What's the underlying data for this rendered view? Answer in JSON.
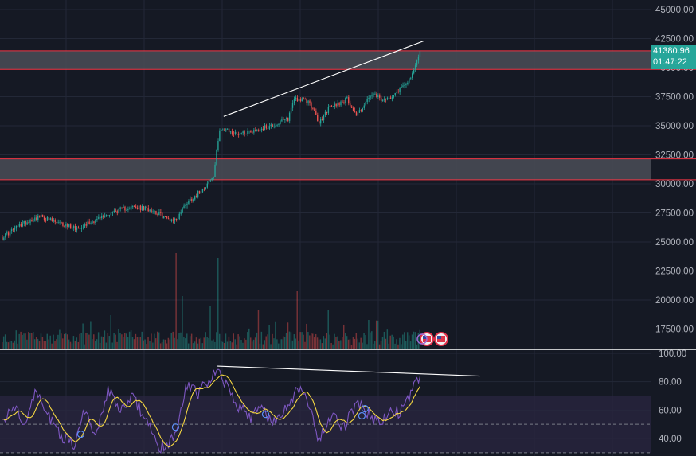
{
  "colors": {
    "background": "#151924",
    "grid": "#232837",
    "axis_text": "#b2b5be",
    "up": "#26a69a",
    "down": "#ef5350",
    "zone_fill": "#4a4d57",
    "zone_border": "#f23645",
    "trendline": "#ffffff",
    "rsi_line": "#7e57c2",
    "rsi_ma": "#f5d742",
    "rsi_band": "#2a2540"
  },
  "price_tag": {
    "price": "41380.96",
    "countdown": "01:47:22"
  },
  "chart_data": [
    {
      "type": "candlestick",
      "title": "",
      "y_ticks": [
        "45000.00",
        "42500.00",
        "40000.00",
        "37500.00",
        "35000.00",
        "32500.00",
        "30000.00",
        "27500.00",
        "25000.00",
        "22500.00",
        "20000.00",
        "17500.00"
      ],
      "ylim": [
        15300,
        45500
      ],
      "last_price": 41380.96,
      "grid": true,
      "price_path": [
        {
          "i": 0,
          "p": 25400
        },
        {
          "i": 12,
          "p": 26500
        },
        {
          "i": 24,
          "p": 27200
        },
        {
          "i": 36,
          "p": 26600
        },
        {
          "i": 48,
          "p": 26200
        },
        {
          "i": 60,
          "p": 26900
        },
        {
          "i": 72,
          "p": 27600
        },
        {
          "i": 82,
          "p": 28000
        },
        {
          "i": 96,
          "p": 27800
        },
        {
          "i": 106,
          "p": 27000
        },
        {
          "i": 112,
          "p": 26900
        },
        {
          "i": 118,
          "p": 28300
        },
        {
          "i": 126,
          "p": 29200
        },
        {
          "i": 132,
          "p": 30000
        },
        {
          "i": 136,
          "p": 30600
        },
        {
          "i": 140,
          "p": 34800
        },
        {
          "i": 150,
          "p": 34300
        },
        {
          "i": 162,
          "p": 34600
        },
        {
          "i": 176,
          "p": 35100
        },
        {
          "i": 184,
          "p": 35600
        },
        {
          "i": 188,
          "p": 37400
        },
        {
          "i": 198,
          "p": 37000
        },
        {
          "i": 204,
          "p": 35200
        },
        {
          "i": 210,
          "p": 36500
        },
        {
          "i": 222,
          "p": 37300
        },
        {
          "i": 228,
          "p": 35900
        },
        {
          "i": 238,
          "p": 37700
        },
        {
          "i": 246,
          "p": 37100
        },
        {
          "i": 256,
          "p": 38200
        },
        {
          "i": 264,
          "p": 39300
        },
        {
          "i": 269,
          "p": 41380
        }
      ],
      "resistance_zones": [
        {
          "low": 39850,
          "high": 41450
        },
        {
          "low": 30350,
          "high": 32150
        }
      ],
      "trendline": {
        "from": {
          "i": 143,
          "p": 35800
        },
        "to": {
          "i": 272,
          "p": 42300
        }
      },
      "volume_spikes": [
        {
          "i": 112,
          "v": 1.0
        },
        {
          "i": 139,
          "v": 0.95
        },
        {
          "i": 134,
          "v": 0.45
        },
        {
          "i": 190,
          "v": 0.6
        },
        {
          "i": 116,
          "v": 0.55
        },
        {
          "i": 70,
          "v": 0.35
        },
        {
          "i": 165,
          "v": 0.4
        },
        {
          "i": 210,
          "v": 0.4
        },
        {
          "i": 236,
          "v": 0.3
        }
      ],
      "event_markers": 2
    },
    {
      "type": "line",
      "title": "",
      "y_ticks": [
        "100.00",
        "80.00",
        "60.00",
        "40.00"
      ],
      "ylim": [
        32,
        102
      ],
      "overbought": 70,
      "middle": 50,
      "oversold": 30,
      "rsi_path": [
        {
          "i": 0,
          "v": 52
        },
        {
          "i": 8,
          "v": 62
        },
        {
          "i": 14,
          "v": 48
        },
        {
          "i": 22,
          "v": 74
        },
        {
          "i": 30,
          "v": 55
        },
        {
          "i": 38,
          "v": 42
        },
        {
          "i": 46,
          "v": 36
        },
        {
          "i": 54,
          "v": 62
        },
        {
          "i": 60,
          "v": 40
        },
        {
          "i": 68,
          "v": 75
        },
        {
          "i": 76,
          "v": 58
        },
        {
          "i": 84,
          "v": 70
        },
        {
          "i": 92,
          "v": 54
        },
        {
          "i": 100,
          "v": 35
        },
        {
          "i": 106,
          "v": 33
        },
        {
          "i": 112,
          "v": 46
        },
        {
          "i": 118,
          "v": 77
        },
        {
          "i": 126,
          "v": 72
        },
        {
          "i": 132,
          "v": 80
        },
        {
          "i": 139,
          "v": 91
        },
        {
          "i": 146,
          "v": 72
        },
        {
          "i": 152,
          "v": 62
        },
        {
          "i": 160,
          "v": 55
        },
        {
          "i": 168,
          "v": 62
        },
        {
          "i": 174,
          "v": 50
        },
        {
          "i": 182,
          "v": 60
        },
        {
          "i": 190,
          "v": 76
        },
        {
          "i": 198,
          "v": 62
        },
        {
          "i": 204,
          "v": 38
        },
        {
          "i": 212,
          "v": 55
        },
        {
          "i": 220,
          "v": 48
        },
        {
          "i": 228,
          "v": 65
        },
        {
          "i": 236,
          "v": 57
        },
        {
          "i": 244,
          "v": 50
        },
        {
          "i": 250,
          "v": 62
        },
        {
          "i": 256,
          "v": 58
        },
        {
          "i": 262,
          "v": 70
        },
        {
          "i": 269,
          "v": 84
        }
      ],
      "trendline": {
        "from": {
          "i": 139,
          "v": 91
        },
        "to": {
          "i": 308,
          "v": 84
        }
      },
      "divergence_markers": [
        {
          "i": 51,
          "v": 43
        },
        {
          "i": 112,
          "v": 48
        },
        {
          "i": 170,
          "v": 57
        },
        {
          "i": 234,
          "v": 61
        },
        {
          "i": 232,
          "v": 56
        }
      ]
    }
  ]
}
